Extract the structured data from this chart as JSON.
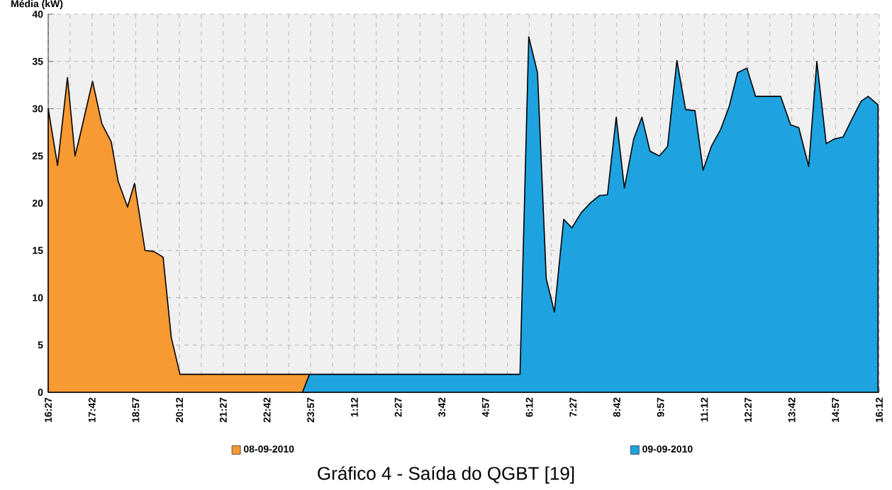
{
  "chart_data": {
    "type": "area",
    "ylabel": "Média (kW)",
    "xlim": [
      "2010-09-08T16:27",
      "2010-09-09T16:12"
    ],
    "ylim": [
      0,
      40
    ],
    "yticks": [
      0,
      5,
      10,
      15,
      20,
      25,
      30,
      35,
      40
    ],
    "xticks": [
      {
        "value": "2010-09-08T16:27",
        "label": "16:27"
      },
      {
        "value": "2010-09-08T17:42",
        "label": "17:42"
      },
      {
        "value": "2010-09-08T18:57",
        "label": "18:57"
      },
      {
        "value": "2010-09-08T20:12",
        "label": "20:12"
      },
      {
        "value": "2010-09-08T21:27",
        "label": "21:27"
      },
      {
        "value": "2010-09-08T22:42",
        "label": "22:42"
      },
      {
        "value": "2010-09-08T23:57",
        "label": "23:57"
      },
      {
        "value": "2010-09-09T01:12",
        "label": "1:12"
      },
      {
        "value": "2010-09-09T02:27",
        "label": "2:27"
      },
      {
        "value": "2010-09-09T03:42",
        "label": "3:42"
      },
      {
        "value": "2010-09-09T04:57",
        "label": "4:57"
      },
      {
        "value": "2010-09-09T06:12",
        "label": "6:12"
      },
      {
        "value": "2010-09-09T07:27",
        "label": "7:27"
      },
      {
        "value": "2010-09-09T08:42",
        "label": "8:42"
      },
      {
        "value": "2010-09-09T09:57",
        "label": "9:57"
      },
      {
        "value": "2010-09-09T11:12",
        "label": "11:12"
      },
      {
        "value": "2010-09-09T12:27",
        "label": "12:27"
      },
      {
        "value": "2010-09-09T13:42",
        "label": "13:42"
      },
      {
        "value": "2010-09-09T14:57",
        "label": "14:57"
      },
      {
        "value": "2010-09-09T16:12",
        "label": "16:12"
      }
    ],
    "grid": true,
    "legend": "bottom",
    "line_style": "solid",
    "series": [
      {
        "name": "08-09-2010",
        "color": "#f79a33",
        "x": [
          "2010-09-08T16:27",
          "2010-09-08T16:43",
          "2010-09-08T17:00",
          "2010-09-08T17:13",
          "2010-09-08T17:22",
          "2010-09-08T17:43",
          "2010-09-08T17:59",
          "2010-09-08T18:15",
          "2010-09-08T18:27",
          "2010-09-08T18:43",
          "2010-09-08T18:55",
          "2010-09-08T19:13",
          "2010-09-08T19:28",
          "2010-09-08T19:44",
          "2010-09-08T19:58",
          "2010-09-08T20:13",
          "2010-09-08T22:00",
          "2010-09-08T23:55"
        ],
        "values": [
          30.0,
          24.0,
          33.3,
          25.0,
          27.3,
          32.9,
          28.4,
          26.5,
          22.3,
          19.6,
          22.1,
          15.0,
          14.9,
          14.3,
          5.8,
          1.9,
          1.9,
          1.9
        ]
      },
      {
        "name": "09-09-2010",
        "color": "#1ea3e0",
        "x": [
          "2010-09-08T23:43",
          "2010-09-08T23:55",
          "2010-09-09T03:42",
          "2010-09-09T05:56",
          "2010-09-09T06:11",
          "2010-09-09T06:26",
          "2010-09-09T06:41",
          "2010-09-09T06:55",
          "2010-09-09T07:11",
          "2010-09-09T07:25",
          "2010-09-09T07:41",
          "2010-09-09T07:58",
          "2010-09-09T08:12",
          "2010-09-09T08:26",
          "2010-09-09T08:41",
          "2010-09-09T08:55",
          "2010-09-09T09:11",
          "2010-09-09T09:25",
          "2010-09-09T09:39",
          "2010-09-09T09:55",
          "2010-09-09T10:09",
          "2010-09-09T10:25",
          "2010-09-09T10:40",
          "2010-09-09T10:56",
          "2010-09-09T11:10",
          "2010-09-09T11:24",
          "2010-09-09T11:40",
          "2010-09-09T11:55",
          "2010-09-09T12:09",
          "2010-09-09T12:25",
          "2010-09-09T12:40",
          "2010-09-09T12:56",
          "2010-09-09T13:23",
          "2010-09-09T13:40",
          "2010-09-09T13:54",
          "2010-09-09T14:11",
          "2010-09-09T14:25",
          "2010-09-09T14:41",
          "2010-09-09T14:55",
          "2010-09-09T15:10",
          "2010-09-09T15:26",
          "2010-09-09T15:41",
          "2010-09-09T15:53",
          "2010-09-09T16:10"
        ],
        "values": [
          0,
          1.9,
          1.9,
          1.9,
          37.6,
          33.8,
          12.0,
          8.5,
          18.3,
          17.4,
          19.0,
          20.1,
          20.8,
          20.9,
          29.1,
          21.6,
          26.8,
          29.1,
          25.5,
          25.0,
          26.0,
          35.1,
          29.9,
          29.8,
          23.5,
          26.0,
          27.8,
          30.3,
          33.8,
          34.3,
          31.3,
          31.3,
          31.3,
          28.3,
          28.0,
          23.9,
          35.0,
          26.3,
          26.8,
          27.0,
          29.0,
          30.8,
          31.3,
          30.4
        ]
      }
    ],
    "annotations": [
      "Gráfico 4 - Saída do QGBT [19]"
    ]
  }
}
